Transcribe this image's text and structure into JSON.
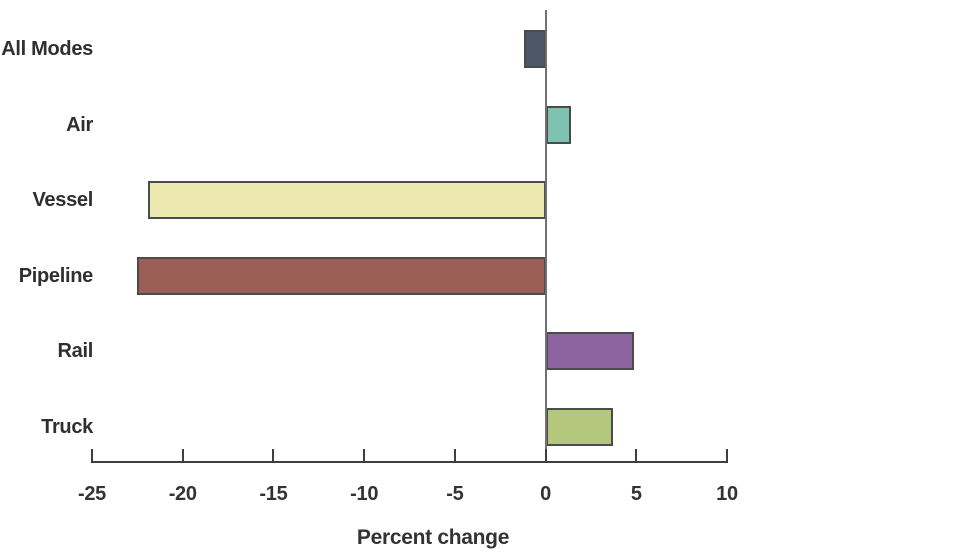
{
  "chart_data": {
    "type": "bar",
    "orientation": "horizontal",
    "title": "",
    "categories": [
      "All Modes",
      "Air",
      "Vessel",
      "Pipeline",
      "Rail",
      "Truck"
    ],
    "values": [
      -1.2,
      1.4,
      -21.9,
      -22.5,
      4.9,
      3.7
    ],
    "bar_colors": [
      "#4d5866",
      "#7ec3af",
      "#ebe8b0",
      "#9b5e57",
      "#8d63a0",
      "#b3c87c"
    ],
    "xlabel": "Percent change",
    "ylabel": "",
    "xlim": [
      -25,
      10
    ],
    "xticks": [
      -25,
      -20,
      -15,
      -10,
      -5,
      0,
      5,
      10
    ],
    "xtick_labels": [
      "-25",
      "-20",
      "-15",
      "-10",
      "-5",
      "0",
      "5",
      "10"
    ],
    "grid": false,
    "legend_position": "none",
    "zero_baseline": true
  },
  "colors": {
    "background": "#ffffff",
    "axis_line": "#3e3e3e",
    "zero_line": "#717171",
    "bar_border": "#4b4b4b",
    "text": "#323232"
  }
}
